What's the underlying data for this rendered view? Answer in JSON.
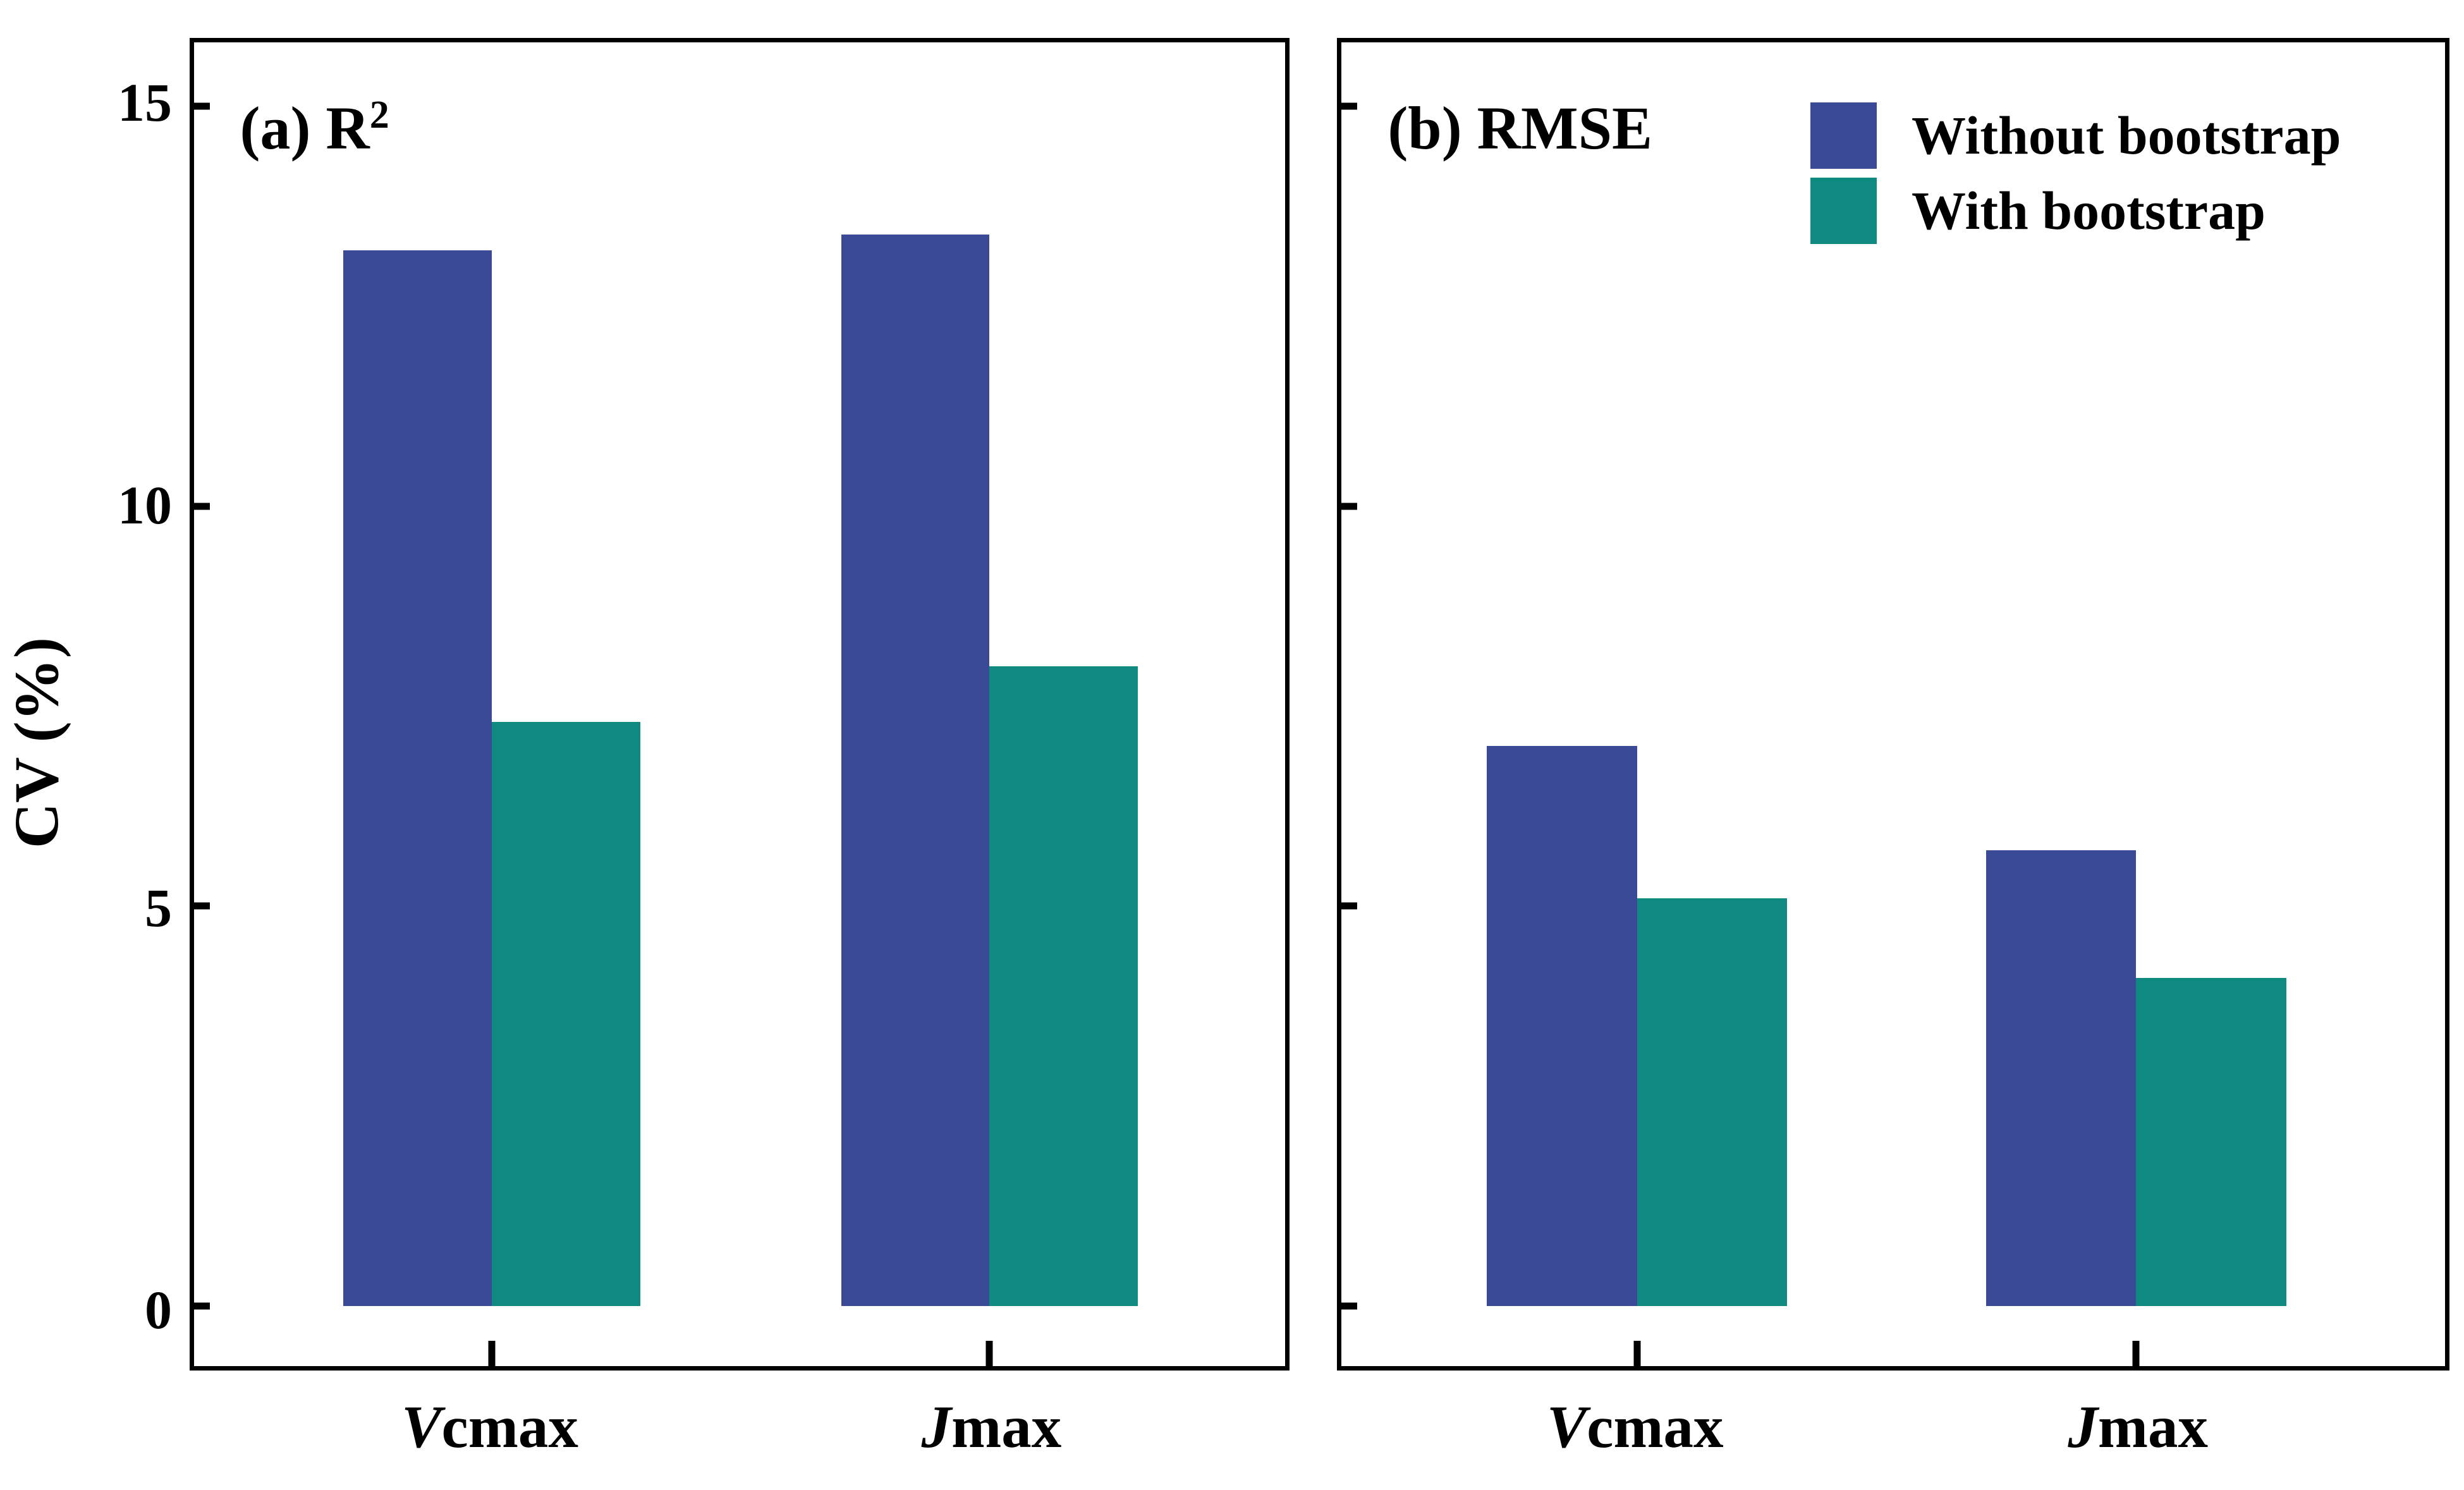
{
  "figure_title": "",
  "y_axis": {
    "title": "CV (%)",
    "ticks": [
      0,
      5,
      10,
      15
    ],
    "range": [
      -0.75,
      15.8
    ]
  },
  "legend": {
    "position": "inside-top-of-right-panel",
    "items": [
      {
        "label": "Without bootstrap",
        "color": "#3B4A96"
      },
      {
        "label": "With bootstrap",
        "color": "#0E8A80"
      }
    ]
  },
  "chart_data": {
    "type": "bar",
    "title": "",
    "xlabel": "",
    "ylabel": "CV (%)",
    "ylim": [
      -0.75,
      15.8
    ],
    "yticks": [
      0,
      5,
      10,
      15
    ],
    "grid": false,
    "categories": [
      "Vcmax",
      "Jmax"
    ],
    "categories_styled": [
      {
        "italic": "V",
        "rest": "cmax"
      },
      {
        "italic": "J",
        "rest": "max"
      }
    ],
    "series_colors": {
      "Without bootstrap": "#3B4A96",
      "With bootstrap": "#0E8A80"
    },
    "panels": [
      {
        "id": "a",
        "title_prefix": "(a) R",
        "title_sup": "2",
        "series": [
          {
            "name": "Without bootstrap",
            "values": [
              13.2,
              13.4
            ]
          },
          {
            "name": "With bootstrap",
            "values": [
              7.3,
              8.0
            ]
          }
        ]
      },
      {
        "id": "b",
        "title_prefix": "(b) RMSE",
        "title_sup": "",
        "series": [
          {
            "name": "Without bootstrap",
            "values": [
              7.0,
              5.7
            ]
          },
          {
            "name": "With bootstrap",
            "values": [
              5.1,
              4.1
            ]
          }
        ]
      }
    ]
  }
}
